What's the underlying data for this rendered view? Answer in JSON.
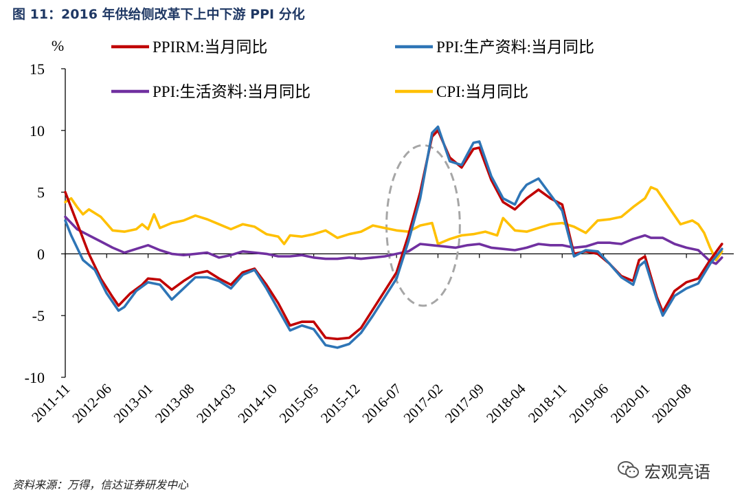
{
  "figure": {
    "title": "图 11：2016 年供给侧改革下上中下游 PPI 分化"
  },
  "footer": {
    "source": "资料来源：万得，信达证券研发中心"
  },
  "brand": {
    "name": "宏观亮语",
    "icon": "wechat-icon"
  },
  "colors": {
    "title": "#1f3864",
    "ppirm": "#c00000",
    "ppi_production": "#2e75b6",
    "ppi_living": "#7030a0",
    "cpi": "#ffc000",
    "ellipse": "#a6a6a6"
  },
  "chart_data": {
    "type": "line",
    "ylabel": "%",
    "ylim": [
      -10,
      15
    ],
    "yticks": [
      15,
      10,
      5,
      0,
      -5,
      -10
    ],
    "xlim": [
      0,
      113
    ],
    "xtick_labels": [
      "2011-11",
      "2012-06",
      "2013-01",
      "2013-08",
      "2014-03",
      "2014-10",
      "2015-05",
      "2015-12",
      "2016-07",
      "2017-02",
      "2017-09",
      "2018-04",
      "2018-11",
      "2019-06",
      "2020-01",
      "2020-08"
    ],
    "xtick_positions": [
      0,
      7,
      14,
      21,
      28,
      35,
      42,
      49,
      56,
      63,
      70,
      77,
      84,
      91,
      98,
      105
    ],
    "legend": [
      "PPIRM:当月同比",
      "PPI:生产资料:当月同比",
      "PPI:生活资料:当月同比",
      "CPI:当月同比"
    ],
    "annotation": {
      "type": "dashed-ellipse",
      "x_center": 60.5,
      "y_center": 2.3,
      "x_radius": 6.2,
      "y_radius": 6.5
    },
    "series": [
      {
        "name": "PPIRM:当月同比",
        "color": "#c00000",
        "points": [
          [
            0,
            5.0
          ],
          [
            2,
            2.5
          ],
          [
            4,
            0.0
          ],
          [
            6,
            -2.0
          ],
          [
            8,
            -3.5
          ],
          [
            9,
            -4.2
          ],
          [
            11,
            -3.2
          ],
          [
            13,
            -2.5
          ],
          [
            14,
            -2.0
          ],
          [
            16,
            -2.1
          ],
          [
            18,
            -2.9
          ],
          [
            20,
            -2.2
          ],
          [
            22,
            -1.6
          ],
          [
            24,
            -1.4
          ],
          [
            26,
            -2.0
          ],
          [
            28,
            -2.5
          ],
          [
            30,
            -1.5
          ],
          [
            32,
            -1.2
          ],
          [
            34,
            -2.5
          ],
          [
            36,
            -4.0
          ],
          [
            38,
            -5.8
          ],
          [
            40,
            -5.5
          ],
          [
            42,
            -5.5
          ],
          [
            44,
            -6.8
          ],
          [
            46,
            -6.9
          ],
          [
            48,
            -6.8
          ],
          [
            50,
            -6.0
          ],
          [
            52,
            -4.5
          ],
          [
            54,
            -3.0
          ],
          [
            56,
            -1.5
          ],
          [
            58,
            1.5
          ],
          [
            60,
            5.0
          ],
          [
            62,
            9.5
          ],
          [
            63,
            10.0
          ],
          [
            65,
            7.8
          ],
          [
            67,
            7.0
          ],
          [
            69,
            8.5
          ],
          [
            70,
            8.6
          ],
          [
            72,
            6.0
          ],
          [
            74,
            4.2
          ],
          [
            76,
            3.6
          ],
          [
            78,
            4.5
          ],
          [
            80,
            5.2
          ],
          [
            82,
            4.5
          ],
          [
            84,
            4.0
          ],
          [
            86,
            0.0
          ],
          [
            88,
            0.2
          ],
          [
            90,
            0.0
          ],
          [
            92,
            -0.8
          ],
          [
            94,
            -1.8
          ],
          [
            96,
            -2.2
          ],
          [
            97,
            -0.5
          ],
          [
            98,
            -0.2
          ],
          [
            100,
            -3.5
          ],
          [
            101,
            -4.7
          ],
          [
            103,
            -3.0
          ],
          [
            105,
            -2.3
          ],
          [
            107,
            -2.0
          ],
          [
            109,
            -0.5
          ],
          [
            111,
            0.8
          ]
        ]
      },
      {
        "name": "PPI:生产资料:当月同比",
        "color": "#2e75b6",
        "points": [
          [
            0,
            2.7
          ],
          [
            1,
            1.5
          ],
          [
            3,
            -0.5
          ],
          [
            5,
            -1.3
          ],
          [
            7,
            -3.2
          ],
          [
            9,
            -4.6
          ],
          [
            10,
            -4.3
          ],
          [
            12,
            -3.0
          ],
          [
            14,
            -2.3
          ],
          [
            16,
            -2.5
          ],
          [
            18,
            -3.7
          ],
          [
            20,
            -2.8
          ],
          [
            22,
            -1.9
          ],
          [
            24,
            -1.9
          ],
          [
            26,
            -2.2
          ],
          [
            28,
            -2.8
          ],
          [
            30,
            -1.7
          ],
          [
            32,
            -1.3
          ],
          [
            34,
            -2.8
          ],
          [
            36,
            -4.5
          ],
          [
            38,
            -6.2
          ],
          [
            40,
            -5.8
          ],
          [
            42,
            -6.1
          ],
          [
            44,
            -7.4
          ],
          [
            46,
            -7.6
          ],
          [
            48,
            -7.3
          ],
          [
            50,
            -6.4
          ],
          [
            52,
            -5.0
          ],
          [
            54,
            -3.5
          ],
          [
            56,
            -2.0
          ],
          [
            58,
            1.0
          ],
          [
            60,
            4.5
          ],
          [
            62,
            9.8
          ],
          [
            63,
            10.3
          ],
          [
            65,
            7.5
          ],
          [
            67,
            7.2
          ],
          [
            69,
            9.0
          ],
          [
            70,
            9.1
          ],
          [
            72,
            6.3
          ],
          [
            74,
            4.5
          ],
          [
            76,
            4.0
          ],
          [
            77,
            5.0
          ],
          [
            78,
            5.6
          ],
          [
            80,
            6.1
          ],
          [
            82,
            4.8
          ],
          [
            84,
            3.5
          ],
          [
            86,
            -0.2
          ],
          [
            88,
            0.3
          ],
          [
            90,
            0.2
          ],
          [
            92,
            -0.8
          ],
          [
            94,
            -1.9
          ],
          [
            96,
            -2.5
          ],
          [
            97,
            -1.0
          ],
          [
            98,
            -0.6
          ],
          [
            100,
            -3.7
          ],
          [
            101,
            -5.0
          ],
          [
            103,
            -3.4
          ],
          [
            105,
            -2.8
          ],
          [
            107,
            -2.4
          ],
          [
            109,
            -0.8
          ],
          [
            111,
            0.4
          ]
        ]
      },
      {
        "name": "PPI:生活资料:当月同比",
        "color": "#7030a0",
        "points": [
          [
            0,
            3.0
          ],
          [
            2,
            2.0
          ],
          [
            4,
            1.5
          ],
          [
            6,
            1.0
          ],
          [
            8,
            0.5
          ],
          [
            10,
            0.1
          ],
          [
            12,
            0.4
          ],
          [
            14,
            0.7
          ],
          [
            16,
            0.3
          ],
          [
            18,
            0.0
          ],
          [
            20,
            -0.1
          ],
          [
            22,
            0.0
          ],
          [
            24,
            0.1
          ],
          [
            26,
            -0.3
          ],
          [
            28,
            -0.1
          ],
          [
            30,
            0.2
          ],
          [
            32,
            0.1
          ],
          [
            34,
            0.0
          ],
          [
            36,
            -0.2
          ],
          [
            38,
            -0.2
          ],
          [
            40,
            -0.1
          ],
          [
            42,
            -0.3
          ],
          [
            44,
            -0.4
          ],
          [
            46,
            -0.4
          ],
          [
            48,
            -0.3
          ],
          [
            50,
            -0.4
          ],
          [
            52,
            -0.3
          ],
          [
            54,
            -0.2
          ],
          [
            56,
            0.0
          ],
          [
            58,
            0.2
          ],
          [
            60,
            0.8
          ],
          [
            62,
            0.7
          ],
          [
            64,
            0.6
          ],
          [
            66,
            0.5
          ],
          [
            68,
            0.7
          ],
          [
            70,
            0.8
          ],
          [
            72,
            0.5
          ],
          [
            74,
            0.4
          ],
          [
            76,
            0.3
          ],
          [
            78,
            0.5
          ],
          [
            80,
            0.8
          ],
          [
            82,
            0.7
          ],
          [
            84,
            0.7
          ],
          [
            86,
            0.5
          ],
          [
            88,
            0.6
          ],
          [
            90,
            0.9
          ],
          [
            92,
            0.9
          ],
          [
            94,
            0.8
          ],
          [
            96,
            1.2
          ],
          [
            98,
            1.5
          ],
          [
            99,
            1.3
          ],
          [
            101,
            1.3
          ],
          [
            103,
            0.8
          ],
          [
            105,
            0.5
          ],
          [
            107,
            0.3
          ],
          [
            109,
            -0.6
          ],
          [
            110,
            -0.8
          ],
          [
            111,
            -0.3
          ]
        ]
      },
      {
        "name": "CPI:当月同比",
        "color": "#ffc000",
        "points": [
          [
            0,
            4.2
          ],
          [
            1,
            4.5
          ],
          [
            2,
            3.8
          ],
          [
            3,
            3.2
          ],
          [
            4,
            3.6
          ],
          [
            6,
            3.0
          ],
          [
            8,
            1.9
          ],
          [
            10,
            1.8
          ],
          [
            12,
            2.0
          ],
          [
            13,
            2.4
          ],
          [
            14,
            2.0
          ],
          [
            15,
            3.2
          ],
          [
            16,
            2.1
          ],
          [
            18,
            2.5
          ],
          [
            20,
            2.7
          ],
          [
            22,
            3.1
          ],
          [
            24,
            2.8
          ],
          [
            26,
            2.4
          ],
          [
            28,
            2.0
          ],
          [
            30,
            2.4
          ],
          [
            32,
            2.2
          ],
          [
            34,
            1.6
          ],
          [
            36,
            1.4
          ],
          [
            37,
            0.8
          ],
          [
            38,
            1.5
          ],
          [
            40,
            1.4
          ],
          [
            42,
            1.6
          ],
          [
            44,
            1.9
          ],
          [
            46,
            1.3
          ],
          [
            48,
            1.6
          ],
          [
            50,
            1.8
          ],
          [
            52,
            2.3
          ],
          [
            54,
            2.1
          ],
          [
            56,
            1.9
          ],
          [
            58,
            1.8
          ],
          [
            60,
            2.3
          ],
          [
            62,
            2.5
          ],
          [
            63,
            0.8
          ],
          [
            65,
            1.2
          ],
          [
            67,
            1.5
          ],
          [
            69,
            1.6
          ],
          [
            71,
            1.8
          ],
          [
            73,
            1.5
          ],
          [
            74,
            2.9
          ],
          [
            76,
            1.9
          ],
          [
            78,
            1.8
          ],
          [
            80,
            2.1
          ],
          [
            82,
            2.4
          ],
          [
            84,
            2.5
          ],
          [
            86,
            2.2
          ],
          [
            88,
            1.7
          ],
          [
            90,
            2.7
          ],
          [
            92,
            2.8
          ],
          [
            94,
            3.0
          ],
          [
            96,
            3.8
          ],
          [
            98,
            4.5
          ],
          [
            99,
            5.4
          ],
          [
            100,
            5.2
          ],
          [
            102,
            3.8
          ],
          [
            104,
            2.4
          ],
          [
            106,
            2.7
          ],
          [
            107,
            2.4
          ],
          [
            108,
            1.7
          ],
          [
            109,
            0.5
          ],
          [
            110,
            -0.5
          ],
          [
            111,
            0.2
          ]
        ]
      }
    ]
  }
}
